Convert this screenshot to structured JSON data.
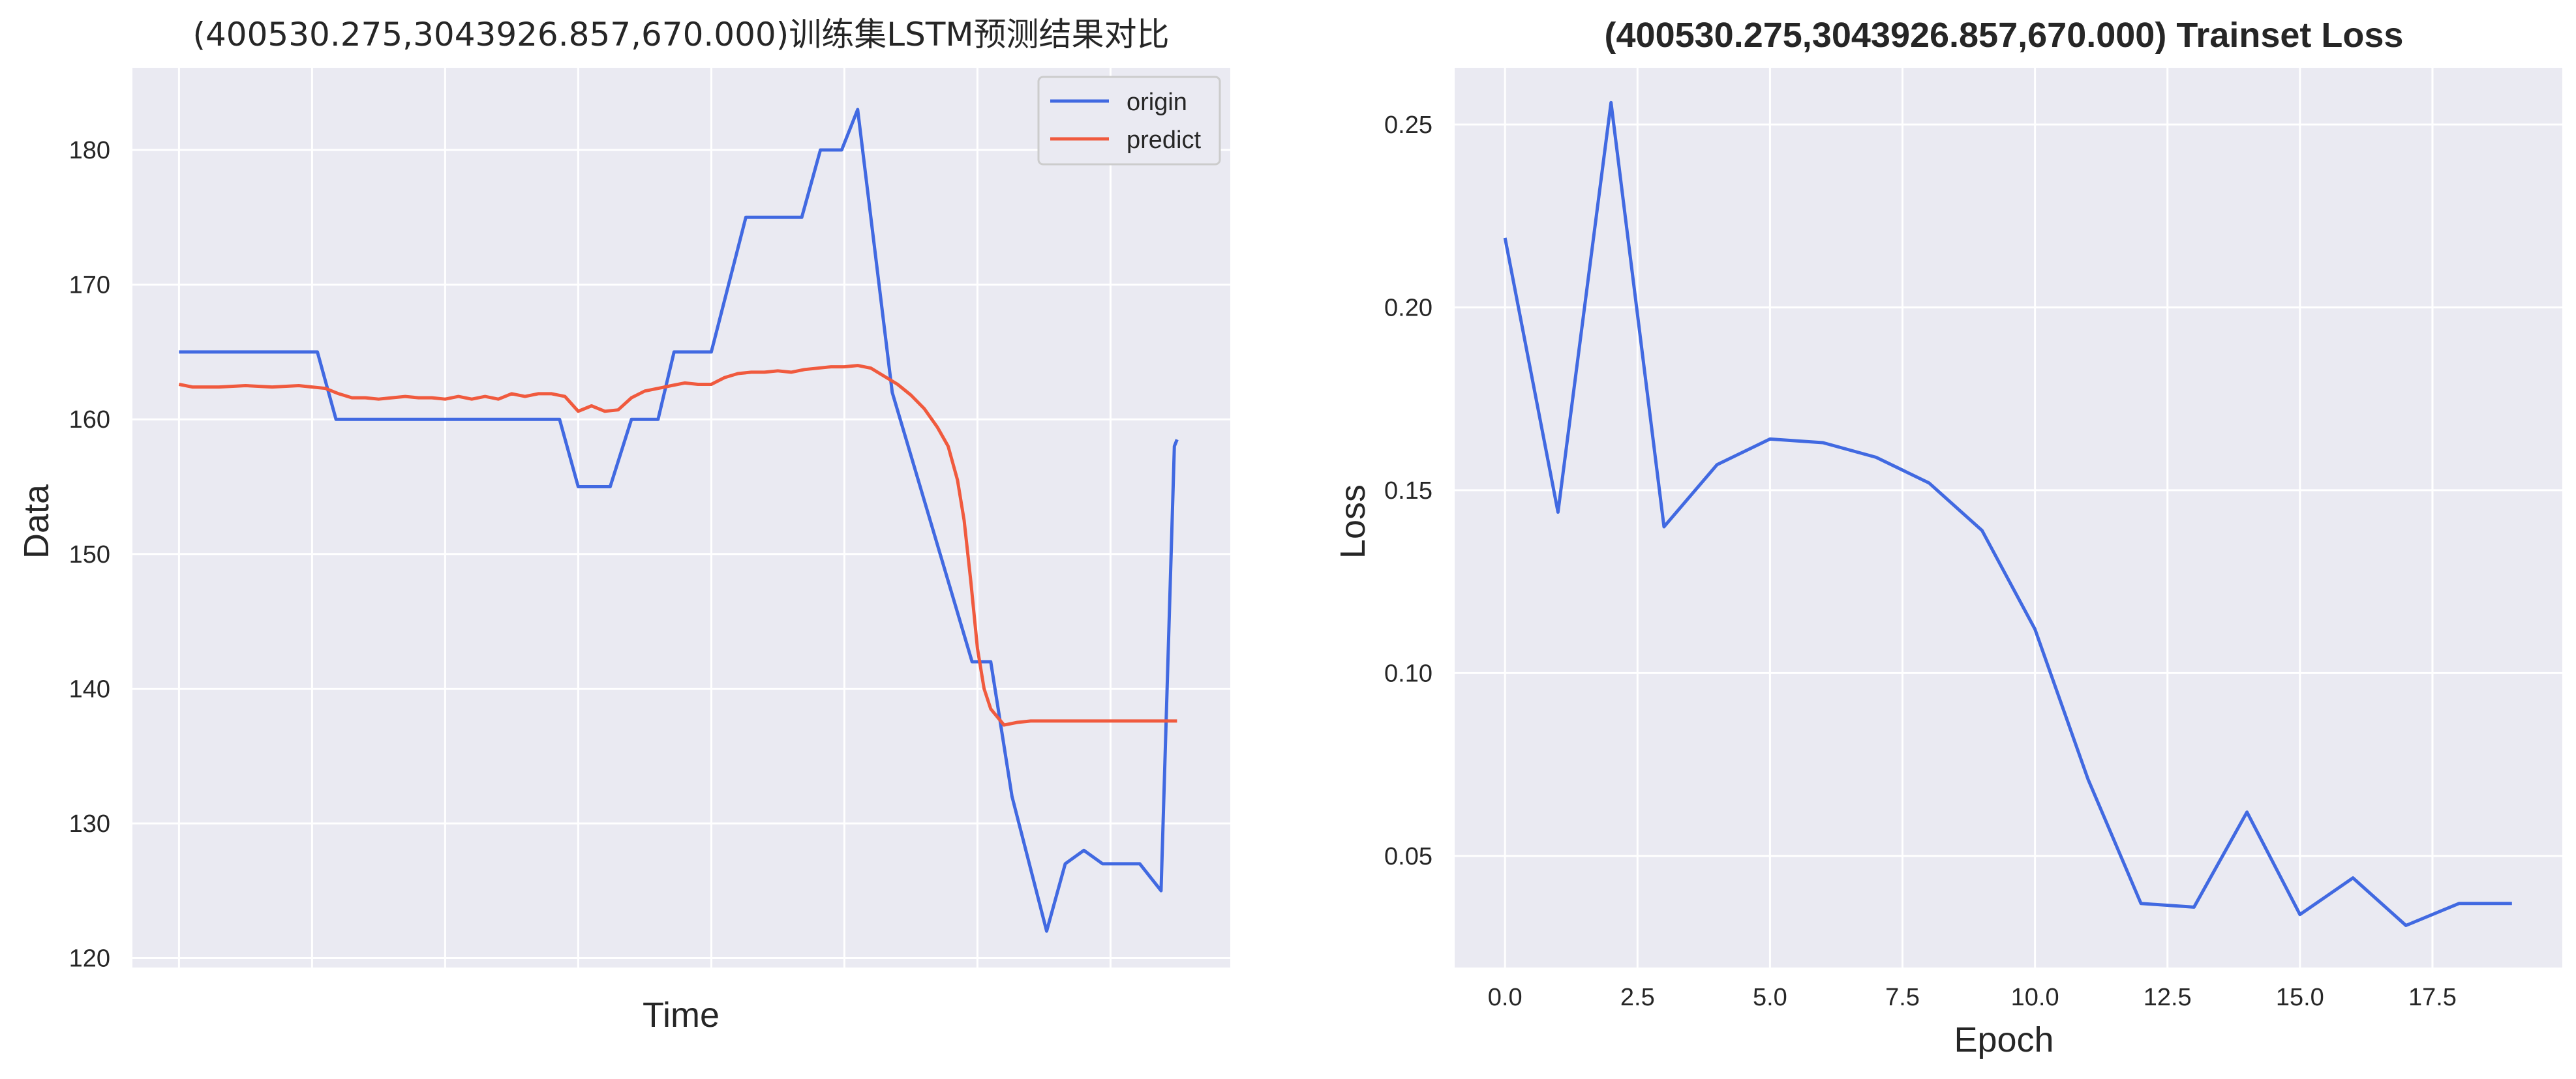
{
  "chart_data": [
    {
      "type": "line",
      "title": "(400530.275,3043926.857,670.000)训练集LSTM预测结果对比",
      "xlabel": "Time",
      "ylabel": "Data",
      "xticks": [
        0,
        10,
        20,
        30,
        40,
        50,
        60,
        70
      ],
      "xtick_labels_shown": false,
      "yticks": [
        120,
        130,
        140,
        150,
        160,
        170,
        180
      ],
      "ylim": [
        119.3,
        186.1
      ],
      "xlim": [
        -3.5,
        79
      ],
      "grid": true,
      "legend": "top-right",
      "series": [
        {
          "name": "origin",
          "color": "#4169e1",
          "points": [
            [
              0,
              165
            ],
            [
              10.4,
              165
            ],
            [
              11.8,
              160
            ],
            [
              28.6,
              160
            ],
            [
              30,
              155
            ],
            [
              32.4,
              155
            ],
            [
              34,
              160
            ],
            [
              36,
              160
            ],
            [
              37.2,
              165
            ],
            [
              40,
              165
            ],
            [
              42.6,
              175
            ],
            [
              46.8,
              175
            ],
            [
              48.2,
              180
            ],
            [
              49.8,
              180
            ],
            [
              51,
              183
            ],
            [
              53.6,
              162
            ],
            [
              59.6,
              142
            ],
            [
              61,
              142
            ],
            [
              62.6,
              132
            ],
            [
              65.2,
              122
            ],
            [
              66.6,
              127
            ],
            [
              68,
              128
            ],
            [
              69.4,
              127
            ],
            [
              72.2,
              127
            ],
            [
              73.8,
              125
            ],
            [
              74.8,
              158
            ],
            [
              75,
              158.5
            ]
          ]
        },
        {
          "name": "predict",
          "color": "#f05a3e",
          "points": [
            [
              0,
              162.6
            ],
            [
              1,
              162.4
            ],
            [
              3,
              162.4
            ],
            [
              5,
              162.5
            ],
            [
              7,
              162.4
            ],
            [
              9,
              162.5
            ],
            [
              10,
              162.4
            ],
            [
              11,
              162.3
            ],
            [
              12,
              161.9
            ],
            [
              13,
              161.6
            ],
            [
              14,
              161.6
            ],
            [
              15,
              161.5
            ],
            [
              16,
              161.6
            ],
            [
              17,
              161.7
            ],
            [
              18,
              161.6
            ],
            [
              19,
              161.6
            ],
            [
              20,
              161.5
            ],
            [
              21,
              161.7
            ],
            [
              22,
              161.5
            ],
            [
              23,
              161.7
            ],
            [
              24,
              161.5
            ],
            [
              25,
              161.9
            ],
            [
              26,
              161.7
            ],
            [
              27,
              161.9
            ],
            [
              28,
              161.9
            ],
            [
              29,
              161.7
            ],
            [
              30,
              160.6
            ],
            [
              31,
              161.0
            ],
            [
              32,
              160.6
            ],
            [
              33,
              160.7
            ],
            [
              34,
              161.6
            ],
            [
              35,
              162.1
            ],
            [
              36,
              162.3
            ],
            [
              37,
              162.5
            ],
            [
              38,
              162.7
            ],
            [
              39,
              162.6
            ],
            [
              40,
              162.6
            ],
            [
              41,
              163.1
            ],
            [
              42,
              163.4
            ],
            [
              43,
              163.5
            ],
            [
              44,
              163.5
            ],
            [
              45,
              163.6
            ],
            [
              46,
              163.5
            ],
            [
              47,
              163.7
            ],
            [
              48,
              163.8
            ],
            [
              49,
              163.9
            ],
            [
              50,
              163.9
            ],
            [
              51,
              164.0
            ],
            [
              52,
              163.8
            ],
            [
              53,
              163.2
            ],
            [
              54,
              162.6
            ],
            [
              55,
              161.8
            ],
            [
              56,
              160.8
            ],
            [
              57,
              159.4
            ],
            [
              57.8,
              158.0
            ],
            [
              58.5,
              155.5
            ],
            [
              59,
              152.5
            ],
            [
              59.5,
              148.0
            ],
            [
              60,
              143.0
            ],
            [
              60.5,
              140.0
            ],
            [
              61,
              138.5
            ],
            [
              62,
              137.3
            ],
            [
              63,
              137.5
            ],
            [
              64,
              137.6
            ],
            [
              66,
              137.6
            ],
            [
              68,
              137.6
            ],
            [
              70,
              137.6
            ],
            [
              72,
              137.6
            ],
            [
              74,
              137.6
            ],
            [
              75,
              137.6
            ]
          ]
        }
      ]
    },
    {
      "type": "line",
      "title": "(400530.275,3043926.857,670.000) Trainset Loss",
      "xlabel": "Epoch",
      "ylabel": "Loss",
      "xticks": [
        0.0,
        2.5,
        5.0,
        7.5,
        10.0,
        12.5,
        15.0,
        17.5
      ],
      "xtick_labels": [
        "0.0",
        "2.5",
        "5.0",
        "7.5",
        "10.0",
        "12.5",
        "15.0",
        "17.5"
      ],
      "yticks": [
        0.05,
        0.1,
        0.15,
        0.2,
        0.25
      ],
      "ytick_labels": [
        "0.05",
        "0.10",
        "0.15",
        "0.20",
        "0.25"
      ],
      "xlim": [
        -0.95,
        19.95
      ],
      "ylim": [
        0.0195,
        0.2655
      ],
      "grid": true,
      "series": [
        {
          "color": "#4169e1",
          "x": [
            0,
            1,
            2,
            3,
            4,
            5,
            6,
            7,
            8,
            9,
            10,
            11,
            12,
            13,
            14,
            15,
            16,
            17,
            18,
            19
          ],
          "values": [
            0.219,
            0.144,
            0.256,
            0.14,
            0.157,
            0.164,
            0.163,
            0.159,
            0.152,
            0.139,
            0.112,
            0.071,
            0.037,
            0.036,
            0.062,
            0.034,
            0.044,
            0.031,
            0.037,
            0.037
          ]
        }
      ]
    }
  ]
}
